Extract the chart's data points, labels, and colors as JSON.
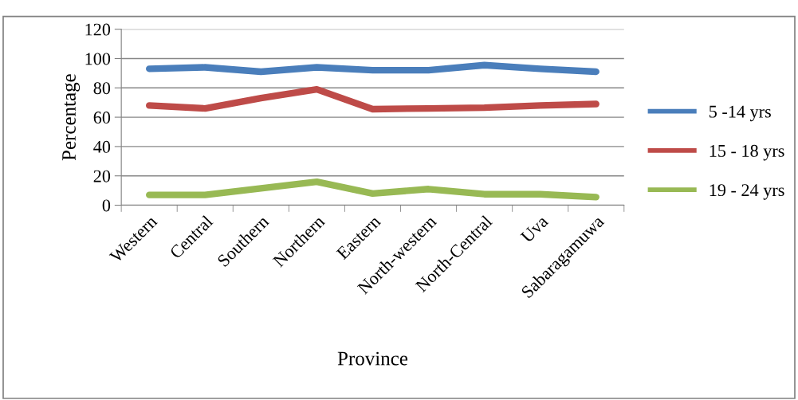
{
  "chart_data": {
    "type": "line",
    "xlabel": "Province",
    "ylabel": "Percentage",
    "categories": [
      "Western",
      "Central",
      "Southern",
      "Northern",
      "Eastern",
      "North-western",
      "North-Central",
      "Uva",
      "Sabaragamuwa"
    ],
    "series": [
      {
        "name": "5 -14 yrs",
        "color": "#4a7ebb",
        "values": [
          93,
          94,
          91,
          94,
          92,
          92,
          95.5,
          93,
          91
        ]
      },
      {
        "name": "15 - 18 yrs",
        "color": "#be4b48",
        "values": [
          68,
          66,
          73,
          79,
          65.5,
          66,
          66.5,
          68,
          69
        ]
      },
      {
        "name": "19 - 24 yrs",
        "color": "#98b954",
        "values": [
          7,
          7,
          11.5,
          16,
          8,
          11,
          7.5,
          7.5,
          5.5
        ]
      }
    ],
    "ylim": [
      0,
      120
    ],
    "yticks": [
      0,
      20,
      40,
      60,
      80,
      100,
      120
    ],
    "grid": "y",
    "legend": "right",
    "marker": "none",
    "line_style": "solid"
  }
}
